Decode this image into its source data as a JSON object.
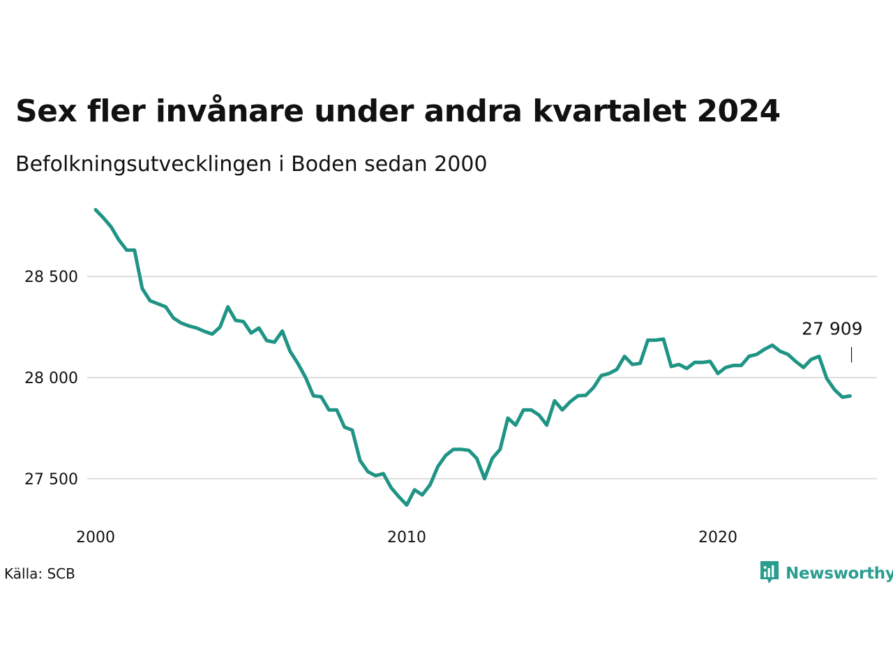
{
  "title": "Sex fler invånare under andra kvartalet 2024",
  "subtitle": "Befolkningsutvecklingen i Boden sedan 2000",
  "source": "Källa: SCB",
  "brand": {
    "name": "Newsworthy",
    "icon": "bar-chart-speech-bubble-icon",
    "color": "#2a9d8f"
  },
  "colors": {
    "line": "#1f9484",
    "grid": "#dddddd",
    "text": "#111111"
  },
  "chart_data": {
    "type": "line",
    "title": "Sex fler invånare under andra kvartalet 2024",
    "subtitle": "Befolkningsutvecklingen i Boden sedan 2000",
    "xlabel": "",
    "ylabel": "",
    "x_ticks": [
      "2000",
      "2010",
      "2020"
    ],
    "y_ticks": [
      "27 500",
      "28 000",
      "28 500"
    ],
    "y_tick_values": [
      27500,
      28000,
      28500
    ],
    "ylim": [
      27300,
      28900
    ],
    "grid": true,
    "end_label": "27 909",
    "series": [
      {
        "x": [
          2000.0,
          2000.25,
          2000.5,
          2000.75,
          2001.0,
          2001.25,
          2001.5,
          2001.75,
          2002.0,
          2002.25,
          2002.5,
          2002.75,
          2003.0,
          2003.25,
          2003.5,
          2003.75,
          2004.0,
          2004.25,
          2004.5,
          2004.75,
          2005.0,
          2005.25,
          2005.5,
          2005.75,
          2006.0,
          2006.25,
          2006.5,
          2006.75,
          2007.0,
          2007.25,
          2007.5,
          2007.75,
          2008.0,
          2008.25,
          2008.5,
          2008.75,
          2009.0,
          2009.25,
          2009.5,
          2009.75,
          2010.0,
          2010.25,
          2010.5,
          2010.75,
          2011.0,
          2011.25,
          2011.5,
          2011.75,
          2012.0,
          2012.25,
          2012.5,
          2012.75,
          2013.0,
          2013.25,
          2013.5,
          2013.75,
          2014.0,
          2014.25,
          2014.5,
          2014.75,
          2015.0,
          2015.25,
          2015.5,
          2015.75,
          2016.0,
          2016.25,
          2016.5,
          2016.75,
          2017.0,
          2017.25,
          2017.5,
          2017.75,
          2018.0,
          2018.25,
          2018.5,
          2018.75,
          2019.0,
          2019.25,
          2019.5,
          2019.75,
          2020.0,
          2020.25,
          2020.5,
          2020.75,
          2021.0,
          2021.25,
          2021.5,
          2021.75,
          2022.0,
          2022.25,
          2022.5,
          2022.75,
          2023.0,
          2023.25,
          2023.5,
          2023.75,
          2024.0,
          2024.25
        ],
        "y": [
          28830,
          28790,
          28745,
          28680,
          28630,
          28630,
          28440,
          28380,
          28365,
          28350,
          28295,
          28270,
          28255,
          28245,
          28228,
          28215,
          28250,
          28350,
          28283,
          28277,
          28220,
          28245,
          28183,
          28175,
          28230,
          28130,
          28070,
          28000,
          27910,
          27905,
          27840,
          27840,
          27755,
          27740,
          27590,
          27535,
          27515,
          27525,
          27455,
          27410,
          27370,
          27445,
          27420,
          27470,
          27560,
          27615,
          27645,
          27645,
          27640,
          27600,
          27500,
          27600,
          27645,
          27800,
          27765,
          27840,
          27840,
          27815,
          27765,
          27885,
          27840,
          27880,
          27910,
          27912,
          27950,
          28010,
          28020,
          28040,
          28105,
          28065,
          28070,
          28185,
          28185,
          28190,
          28055,
          28065,
          28045,
          28075,
          28075,
          28080,
          28020,
          28050,
          28060,
          28060,
          28105,
          28115,
          28140,
          28160,
          28130,
          28115,
          28080,
          28050,
          28090,
          28105,
          27995,
          27940,
          27903,
          27909
        ]
      }
    ]
  }
}
